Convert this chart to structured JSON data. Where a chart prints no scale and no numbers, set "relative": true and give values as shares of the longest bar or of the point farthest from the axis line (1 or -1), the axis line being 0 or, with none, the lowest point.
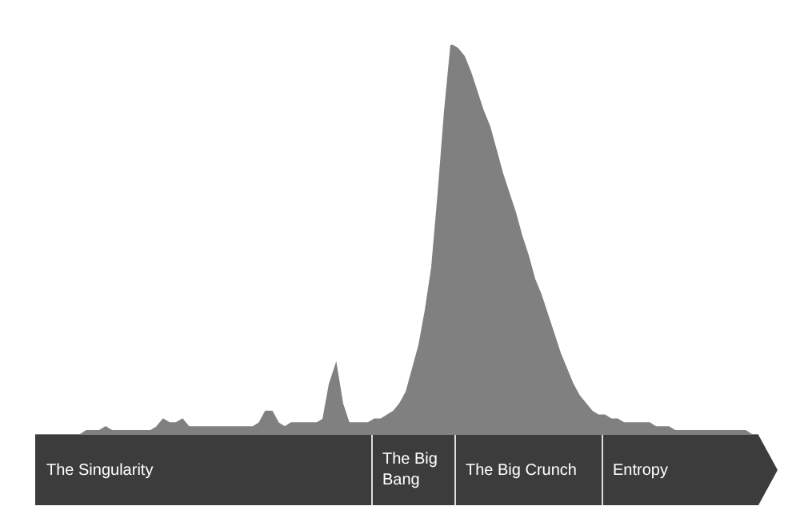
{
  "chart_data": {
    "type": "area",
    "relative": true,
    "color": "#808080",
    "legend": false,
    "categories": [
      null,
      null,
      null,
      null,
      null,
      null,
      null,
      null,
      null,
      null,
      null,
      null,
      null,
      null,
      null,
      null,
      null,
      null,
      null,
      null,
      null,
      null,
      null,
      null,
      null,
      null,
      null,
      null,
      null,
      null,
      null,
      null,
      null,
      null,
      null,
      null,
      null,
      null,
      null,
      null,
      null,
      null,
      null,
      null,
      null,
      null,
      null,
      null,
      null,
      null,
      null,
      null,
      null,
      null,
      null,
      null,
      null,
      null,
      null,
      null,
      null,
      null,
      null,
      null,
      null,
      null,
      null,
      null,
      null,
      null,
      null,
      null,
      null,
      null,
      null,
      null,
      null,
      null,
      null,
      null,
      null,
      null,
      null,
      null,
      null,
      null,
      null,
      null,
      null,
      null,
      null,
      null,
      null,
      null,
      null,
      null,
      null,
      null,
      null,
      null,
      null,
      null,
      null,
      null,
      null,
      null,
      null,
      null,
      null,
      null,
      null,
      null,
      null,
      null
    ],
    "values": [
      0,
      0,
      0,
      0,
      0,
      0,
      0,
      0,
      0.01,
      0.01,
      0.01,
      0.02,
      0.01,
      0.01,
      0.01,
      0.01,
      0.01,
      0.01,
      0.01,
      0.02,
      0.04,
      0.03,
      0.03,
      0.04,
      0.02,
      0.02,
      0.02,
      0.02,
      0.02,
      0.02,
      0.02,
      0.02,
      0.02,
      0.02,
      0.02,
      0.03,
      0.06,
      0.06,
      0.03,
      0.02,
      0.03,
      0.03,
      0.03,
      0.03,
      0.03,
      0.04,
      0.13,
      0.18,
      0.08,
      0.03,
      0.03,
      0.03,
      0.03,
      0.04,
      0.04,
      0.05,
      0.06,
      0.08,
      0.11,
      0.17,
      0.23,
      0.32,
      0.43,
      0.62,
      0.83,
      1,
      0.99,
      0.97,
      0.93,
      0.88,
      0.83,
      0.79,
      0.73,
      0.67,
      0.62,
      0.57,
      0.51,
      0.46,
      0.4,
      0.36,
      0.31,
      0.26,
      0.21,
      0.17,
      0.13,
      0.1,
      0.08,
      0.06,
      0.05,
      0.05,
      0.04,
      0.04,
      0.03,
      0.03,
      0.03,
      0.03,
      0.03,
      0.02,
      0.02,
      0.02,
      0.01,
      0.01,
      0.01,
      0.01,
      0.01,
      0.01,
      0.01,
      0.01,
      0.01,
      0.01,
      0.01,
      0.01,
      0,
      0
    ],
    "annotations": [
      "The Singularity",
      "The Big Bang",
      "The Big Crunch",
      "Entropy"
    ]
  }
}
